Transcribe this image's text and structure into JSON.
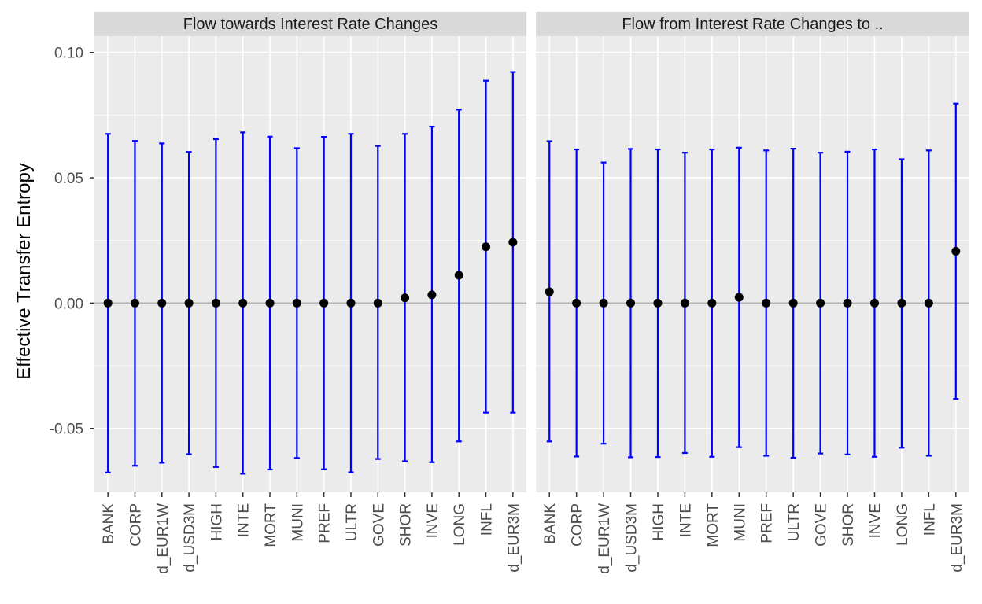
{
  "chart_data": {
    "type": "scatter",
    "ylabel": "Effective Transfer Entropy",
    "xlabel": "",
    "ylim": [
      -0.0755,
      0.1065
    ],
    "yticks": [
      -0.05,
      0.0,
      0.05,
      0.1
    ],
    "ytick_labels": [
      "-0.05",
      "0.00",
      "0.05",
      "0.10"
    ],
    "reference_line_y": 0,
    "grid": true,
    "colors": {
      "panel_bg": "#ebebeb",
      "strip_bg": "#d9d9d9",
      "gridline": "#ffffff",
      "errorbar": "#0000ff",
      "point": "#000000",
      "reference_line": "#b3b3b3"
    },
    "panels": [
      {
        "title": "Flow towards Interest Rate Changes",
        "categories": [
          "BANK",
          "CORP",
          "d_EUR1W",
          "d_USD3M",
          "HIGH",
          "INTE",
          "MORT",
          "MUNI",
          "PREF",
          "ULTR",
          "GOVE",
          "SHOR",
          "INVE",
          "LONG",
          "INFL",
          "d_EUR3M"
        ],
        "values": [
          0.0,
          0.0,
          0.0,
          0.0,
          0.0,
          0.0,
          0.0,
          0.0,
          0.0,
          0.0,
          0.0,
          0.0021,
          0.0033,
          0.0111,
          0.0225,
          0.0243
        ],
        "upper": [
          0.0675,
          0.0647,
          0.0637,
          0.0603,
          0.0654,
          0.0681,
          0.0664,
          0.0618,
          0.0663,
          0.0675,
          0.0627,
          0.0675,
          0.0704,
          0.0772,
          0.0887,
          0.0922
        ],
        "lower": [
          -0.0676,
          -0.0649,
          -0.0637,
          -0.0603,
          -0.0654,
          -0.0681,
          -0.0664,
          -0.0618,
          -0.0663,
          -0.0675,
          -0.0622,
          -0.0631,
          -0.0635,
          -0.0552,
          -0.0437,
          -0.0437
        ]
      },
      {
        "title": "Flow from Interest Rate Changes to ..",
        "categories": [
          "BANK",
          "CORP",
          "d_EUR1W",
          "d_USD3M",
          "HIGH",
          "INTE",
          "MORT",
          "MUNI",
          "PREF",
          "ULTR",
          "GOVE",
          "SHOR",
          "INVE",
          "LONG",
          "INFL",
          "d_EUR3M"
        ],
        "values": [
          0.0045,
          0.0,
          0.0,
          0.0,
          0.0,
          0.0,
          0.0,
          0.0023,
          0.0,
          0.0,
          0.0,
          0.0,
          0.0,
          0.0,
          0.0,
          0.0207
        ],
        "upper": [
          0.0646,
          0.0613,
          0.0561,
          0.0615,
          0.0613,
          0.06,
          0.0613,
          0.062,
          0.0609,
          0.0616,
          0.06,
          0.0604,
          0.0613,
          0.0574,
          0.0609,
          0.0796
        ],
        "lower": [
          -0.0552,
          -0.0612,
          -0.0561,
          -0.0615,
          -0.0614,
          -0.0598,
          -0.0613,
          -0.0575,
          -0.0609,
          -0.0617,
          -0.06,
          -0.0604,
          -0.0613,
          -0.0577,
          -0.0609,
          -0.0382
        ]
      }
    ]
  }
}
